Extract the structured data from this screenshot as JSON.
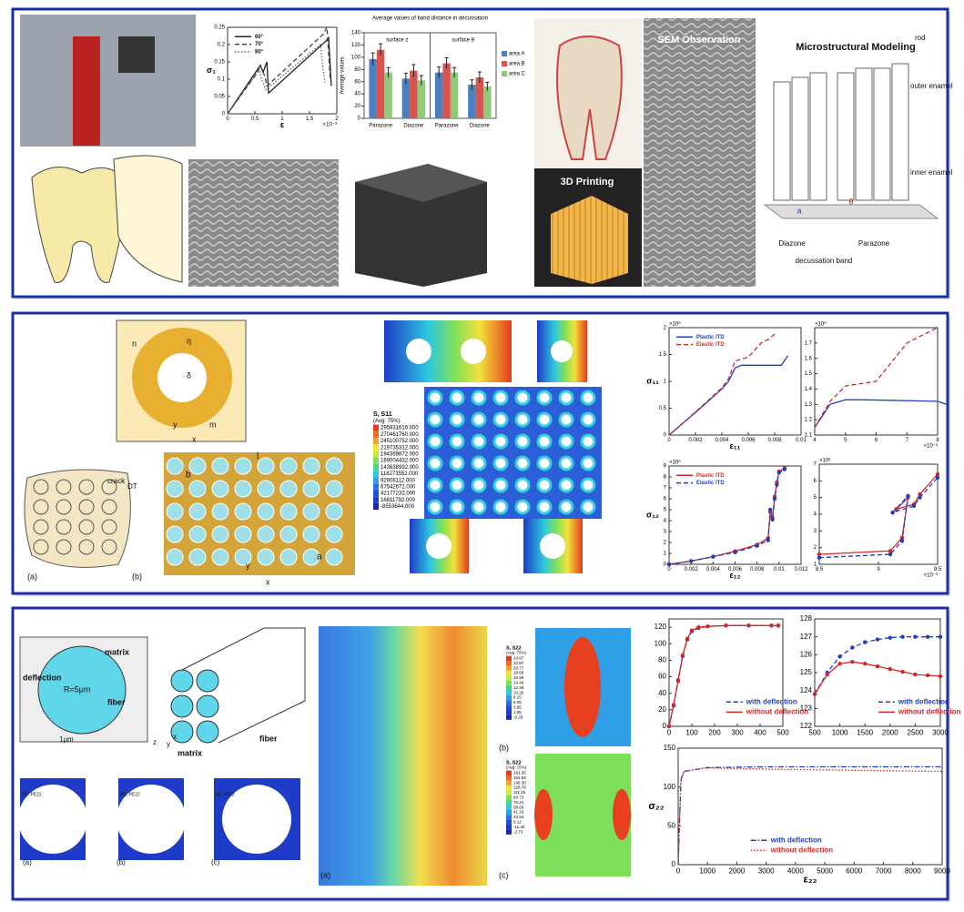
{
  "panel1": {
    "sem_title": "SEM Observation",
    "printing_title": "3D Printing",
    "modeling_title": "Microstructural Modeling",
    "model_labels": {
      "rod": "rod",
      "outer": "outer enamel",
      "inner": "inner enamel",
      "a": "a",
      "theta": "θ",
      "diazone": "Diazone",
      "parazone": "Parazone",
      "band": "decussation band"
    },
    "strain_chart": {
      "type": "line",
      "ylabel": "σ₁",
      "xlabel": "ε",
      "x_multiplier": "×10⁻³",
      "xlim": [
        0,
        2
      ],
      "ylim": [
        0,
        0.25
      ],
      "xticks": [
        0,
        0.5,
        1,
        1.5,
        2
      ],
      "yticks": [
        0,
        0.05,
        0.1,
        0.15,
        0.2,
        0.25
      ],
      "legend": "top-left",
      "series": [
        {
          "name": "60°",
          "color": "#222222",
          "dash": "solid",
          "x": [
            0,
            0.6,
            0.65,
            0.72,
            0.75,
            1.8,
            1.85,
            1.9
          ],
          "values": [
            0,
            0.14,
            0.12,
            0.15,
            0.06,
            0.21,
            0.22,
            0.08
          ]
        },
        {
          "name": "70°",
          "color": "#444444",
          "dash": "dashed",
          "x": [
            0,
            0.55,
            0.6,
            0.68,
            0.72,
            1.75,
            1.82,
            1.88
          ],
          "values": [
            0,
            0.12,
            0.14,
            0.11,
            0.08,
            0.23,
            0.25,
            0.1
          ]
        },
        {
          "name": "80°",
          "color": "#666666",
          "dash": "dotted",
          "x": [
            0,
            0.5,
            0.58,
            0.62,
            0.7,
            1.7,
            1.78
          ],
          "values": [
            0,
            0.11,
            0.13,
            0.1,
            0.07,
            0.2,
            0.09
          ]
        }
      ]
    },
    "bar_chart": {
      "type": "bar",
      "title": "Average values of band distance in decussation",
      "ylabel": "Average values",
      "groups": [
        "surface z",
        "surface θ"
      ],
      "categories": [
        "Parazone",
        "Diazone",
        "Parazone",
        "Diazone"
      ],
      "ylim": [
        0,
        140
      ],
      "yticks": [
        0,
        20,
        40,
        60,
        80,
        100,
        120,
        140
      ],
      "legend": "right",
      "series": [
        {
          "name": "area A",
          "color": "#4a7fc1",
          "values": [
            97,
            65,
            75,
            55
          ],
          "errors": [
            10,
            9,
            9,
            8
          ]
        },
        {
          "name": "area B",
          "color": "#d9534f",
          "values": [
            112,
            78,
            90,
            67
          ],
          "errors": [
            10,
            10,
            9,
            9
          ]
        },
        {
          "name": "area C",
          "color": "#8fc97a",
          "values": [
            75,
            62,
            75,
            52
          ],
          "errors": [
            8,
            8,
            8,
            7
          ]
        }
      ]
    }
  },
  "panel2": {
    "labels": {
      "n": "n",
      "eta": "η",
      "delta": "δ",
      "y": "y",
      "m": "m",
      "x": "x",
      "b": "b",
      "l": "l",
      "a": "a",
      "y2": "y",
      "x2": "x",
      "crack": "crack",
      "dt": "DT",
      "fig_a": "(a)",
      "fig_b": "(b)"
    },
    "contour": {
      "title": "S, S11",
      "avg": "(Avg: 75%)",
      "values": [
        "295831616.000",
        "270461760.000",
        "245100752.000",
        "219735312.000",
        "194369872.000",
        "169004432.000",
        "143638992.000",
        "118273552.000",
        "92908112.000",
        "67542672.000",
        "42177232.000",
        "16811792.000",
        "-8553644.000"
      ]
    },
    "s11_chart": {
      "type": "line",
      "ylabel": "σ₁₁",
      "xlabel": "ε₁₁",
      "y_multiplier": "×10⁸",
      "xlim": [
        0,
        0.01
      ],
      "ylim": [
        0,
        2
      ],
      "xticks": [
        0,
        0.002,
        0.004,
        0.006,
        0.008,
        0.01
      ],
      "yticks": [
        0,
        0.5,
        1,
        1.5,
        2
      ],
      "legend": "top-left",
      "series": [
        {
          "name": "Plastic ITD",
          "color": "#1f3fbf",
          "dash": "solid",
          "x": [
            0,
            0.002,
            0.004,
            0.0045,
            0.005,
            0.0055,
            0.0085,
            0.009
          ],
          "values": [
            0,
            0.42,
            0.86,
            1.0,
            1.25,
            1.3,
            1.3,
            1.48
          ]
        },
        {
          "name": "Elastic ITD",
          "color": "#d62728",
          "dash": "dashed",
          "x": [
            0,
            0.002,
            0.004,
            0.0045,
            0.005,
            0.006,
            0.007,
            0.0075,
            0.008
          ],
          "values": [
            0,
            0.43,
            0.88,
            1.05,
            1.38,
            1.45,
            1.72,
            1.78,
            1.88
          ]
        }
      ]
    },
    "s11_inset": {
      "type": "line",
      "x_multiplier": "×10⁻³",
      "y_multiplier": "×10⁸",
      "xlim": [
        4,
        8
      ],
      "ylim": [
        1.1,
        1.8
      ],
      "xticks": [
        4,
        5,
        6,
        7,
        8
      ],
      "yticks": [
        1.1,
        1.2,
        1.3,
        1.4,
        1.5,
        1.6,
        1.7
      ],
      "series": [
        {
          "color": "#1f3fbf",
          "dash": "solid",
          "x": [
            4,
            4.5,
            5,
            5.5,
            8,
            8.3
          ],
          "values": [
            1.15,
            1.3,
            1.33,
            1.33,
            1.32,
            1.3
          ]
        },
        {
          "color": "#d62728",
          "dash": "dashed",
          "x": [
            4,
            4.5,
            5,
            6,
            7,
            7.5,
            8
          ],
          "values": [
            1.15,
            1.32,
            1.42,
            1.45,
            1.7,
            1.75,
            1.8
          ]
        }
      ]
    },
    "s12_chart": {
      "type": "line",
      "ylabel": "σ₁₂",
      "xlabel": "ε₁₂",
      "y_multiplier": "×10⁸",
      "xlim": [
        0,
        0.012
      ],
      "ylim": [
        0,
        9
      ],
      "xticks": [
        0,
        0.002,
        0.004,
        0.006,
        0.008,
        0.01,
        0.012
      ],
      "yticks": [
        0,
        1,
        2,
        3,
        4,
        5,
        6,
        7,
        8,
        9
      ],
      "legend": "top-left",
      "series": [
        {
          "name": "Plastic ITD",
          "color": "#d62728",
          "dash": "solid",
          "marker": true,
          "x": [
            0,
            0.002,
            0.004,
            0.006,
            0.008,
            0.009,
            0.0092,
            0.0094,
            0.0096,
            0.0098,
            0.01,
            0.0105
          ],
          "values": [
            0,
            0.3,
            0.7,
            1.2,
            1.8,
            2.4,
            4.8,
            4.3,
            6.2,
            7.5,
            8.5,
            8.8
          ]
        },
        {
          "name": "Elastic ITD",
          "color": "#1f3fbf",
          "dash": "dashed",
          "marker": true,
          "x": [
            0,
            0.002,
            0.004,
            0.006,
            0.008,
            0.009,
            0.0092,
            0.0094,
            0.0096,
            0.0098,
            0.01,
            0.0105
          ],
          "values": [
            0,
            0.3,
            0.7,
            1.1,
            1.7,
            2.2,
            5.0,
            4.1,
            6.0,
            7.3,
            8.4,
            8.7
          ]
        }
      ]
    },
    "s12_inset": {
      "type": "line",
      "x_multiplier": "×10⁻³",
      "y_multiplier": "×10⁸",
      "xlim": [
        8.5,
        9.5
      ],
      "ylim": [
        1,
        7
      ],
      "xticks": [
        8.5,
        9,
        9.5
      ],
      "yticks": [
        1,
        2,
        3,
        4,
        5,
        6,
        7
      ],
      "series": [
        {
          "color": "#d62728",
          "dash": "solid",
          "marker": true,
          "x": [
            8.5,
            9.1,
            9.2,
            9.25,
            9.15,
            9.3,
            9.35,
            9.5
          ],
          "values": [
            1.6,
            1.8,
            2.6,
            5.0,
            4.3,
            4.6,
            5.2,
            6.4
          ]
        },
        {
          "color": "#1f3fbf",
          "dash": "dashed",
          "marker": true,
          "x": [
            8.5,
            9.1,
            9.2,
            9.25,
            9.12,
            9.3,
            9.35,
            9.5
          ],
          "values": [
            1.4,
            1.6,
            2.4,
            5.1,
            4.1,
            4.5,
            5.0,
            6.2
          ]
        }
      ]
    }
  },
  "panel3": {
    "labels": {
      "deflection": "deflection",
      "matrix": "matrix",
      "fiber": "fiber",
      "radius": "R=5μm",
      "gap": "1μm",
      "matrix2": "matrix",
      "fiber2": "fiber",
      "x": "x",
      "y": "y",
      "z": "z",
      "fig_a": "(a)",
      "fig_b": "(b)",
      "fig_c": "(c)",
      "pe_a": "PE, PE22",
      "pe_b": "PE, PE22",
      "pe_c": "PE, PE22",
      "strip_a": "(a)",
      "strip_b": "(b)",
      "strip_c": "(c)"
    },
    "contour1": {
      "title": "S, S22",
      "avg": "(Avg: 75%)",
      "values": [
        "24.97",
        "22.87",
        "20.77",
        "18.66",
        "16.56",
        "14.46",
        "12.36",
        "10.26",
        "8.15",
        "6.05",
        "3.95",
        "1.85",
        "-0.25"
      ]
    },
    "contour2": {
      "title": "S, S22",
      "avg": "(Avg: 75%)",
      "values": [
        "181.35",
        "163.83",
        "146.30",
        "128.78",
        "111.26",
        "93.73",
        "76.21",
        "58.69",
        "41.16",
        "23.64",
        "6.12",
        "-11.40",
        "-2.73"
      ]
    },
    "chart_a": {
      "type": "line",
      "xlim": [
        0,
        500
      ],
      "ylim": [
        0,
        130
      ],
      "xticks": [
        0,
        100,
        200,
        300,
        400,
        500
      ],
      "yticks": [
        0,
        20,
        40,
        60,
        80,
        100,
        120
      ],
      "legend": "bottom-right",
      "series": [
        {
          "name": "with deflection",
          "color": "#1f3fbf",
          "dash": "dashed",
          "marker": true,
          "x": [
            0,
            20,
            40,
            60,
            80,
            100,
            130,
            170,
            250,
            350,
            450,
            480
          ],
          "values": [
            0,
            25,
            55,
            85,
            105,
            115,
            119,
            121,
            122,
            122,
            122,
            122
          ]
        },
        {
          "name": "without deflection",
          "color": "#d62728",
          "dash": "solid",
          "marker": true,
          "x": [
            0,
            20,
            40,
            60,
            80,
            100,
            130,
            170,
            250,
            350,
            450,
            480
          ],
          "values": [
            0,
            26,
            56,
            86,
            106,
            116,
            120,
            121,
            122,
            122,
            122,
            122
          ]
        }
      ]
    },
    "chart_b": {
      "type": "line",
      "xlim": [
        500,
        3000
      ],
      "ylim": [
        122,
        128
      ],
      "xticks": [
        500,
        1000,
        1500,
        2000,
        2500,
        3000
      ],
      "yticks": [
        122,
        123,
        124,
        125,
        126,
        127,
        128
      ],
      "legend": "bottom-right",
      "series": [
        {
          "name": "with deflection",
          "color": "#1f3fbf",
          "dash": "dashed",
          "marker": true,
          "x": [
            500,
            750,
            1000,
            1250,
            1500,
            1750,
            2000,
            2250,
            2500,
            2750,
            3000
          ],
          "values": [
            123.8,
            125,
            125.9,
            126.4,
            126.7,
            126.85,
            126.95,
            127,
            127,
            127,
            127
          ]
        },
        {
          "name": "without deflection",
          "color": "#d62728",
          "dash": "solid",
          "marker": true,
          "x": [
            500,
            750,
            1000,
            1250,
            1500,
            1750,
            2000,
            2250,
            2500,
            2750,
            3000
          ],
          "values": [
            123.8,
            124.9,
            125.5,
            125.6,
            125.5,
            125.35,
            125.2,
            125.05,
            124.9,
            124.85,
            124.8
          ]
        }
      ]
    },
    "chart_c": {
      "type": "line",
      "ylabel": "σ₂₂",
      "xlabel": "ε₂₂",
      "xlim": [
        0,
        9000
      ],
      "ylim": [
        0,
        150
      ],
      "xticks": [
        0,
        1000,
        2000,
        3000,
        4000,
        5000,
        6000,
        7000,
        8000,
        9000
      ],
      "yticks": [
        0,
        50,
        100,
        150
      ],
      "legend": "bottom-center",
      "series": [
        {
          "name": "with deflection",
          "color": "#1f3fbf",
          "dash": "dashdot",
          "x": [
            0,
            50,
            100,
            200,
            500,
            1000,
            3000,
            9000
          ],
          "values": [
            0,
            60,
            110,
            120,
            122,
            125,
            126,
            126
          ]
        },
        {
          "name": "without deflection",
          "color": "#d62728",
          "dash": "dotted",
          "x": [
            0,
            50,
            100,
            200,
            500,
            1000,
            3000,
            9000
          ],
          "values": [
            0,
            60,
            110,
            120,
            122,
            124.5,
            123,
            120
          ]
        }
      ]
    }
  }
}
